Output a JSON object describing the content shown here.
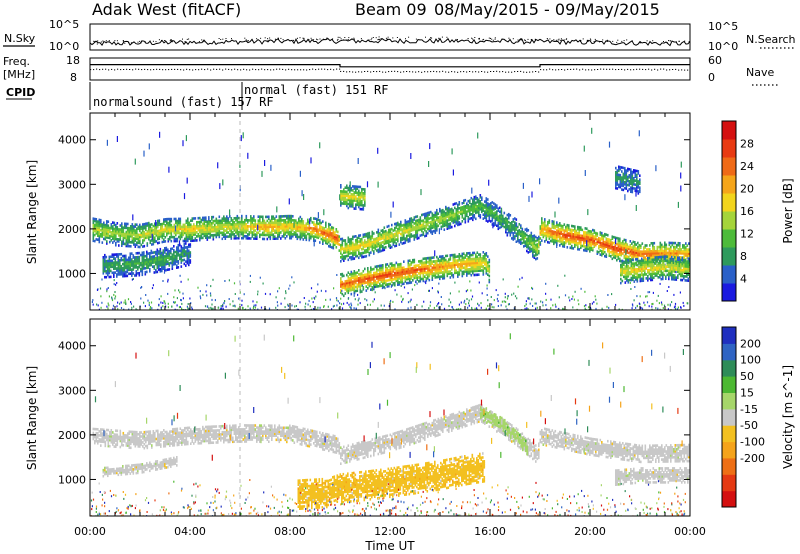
{
  "header": {
    "station": "Adak West (fitACF)",
    "beam": "Beam 09",
    "date_range": "08/May/2015 - 09/May/2015"
  },
  "panels": {
    "nsky_label": "N.Sky",
    "nsky_ticks": [
      "10^5",
      "10^0"
    ],
    "nsearch_label": "N.Search",
    "nsearch_ticks": [
      "10^5",
      "10^0"
    ],
    "freq_label": "Freq.",
    "freq_unit": "[MHz]",
    "freq_ticks": [
      "18",
      "8"
    ],
    "nave_label": "Nave",
    "nave_ticks": [
      "60",
      "0"
    ],
    "cpid_label": "CPID",
    "cpid_segments": [
      {
        "label": "normalsound (fast) 157 RF",
        "start": 0,
        "end": 6
      },
      {
        "label": "normal (fast) 151 RF",
        "start": 6,
        "end": 24
      }
    ],
    "freq_segments": [
      {
        "start": 0,
        "end": 10,
        "level": 0.3
      },
      {
        "start": 10,
        "end": 18,
        "level": 0.4
      },
      {
        "start": 18,
        "end": 24,
        "level": 0.3
      }
    ]
  },
  "chart_data": [
    {
      "type": "heatmap",
      "title": "Power",
      "xlabel": "",
      "ylabel": "Slant Range [km]",
      "x_range": [
        0,
        24
      ],
      "ylim": [
        180,
        4600
      ],
      "y_ticks": [
        "1000",
        "2000",
        "3000",
        "4000"
      ],
      "y_tick_values": [
        1000,
        2000,
        3000,
        4000
      ],
      "colorbar": {
        "label": "Power [dB]",
        "ticks": [
          "4",
          "8",
          "12",
          "16",
          "20",
          "24",
          "28"
        ],
        "colors": [
          "#1a1ae0",
          "#2a60c8",
          "#2e9a5c",
          "#4dbb3a",
          "#a5d43a",
          "#f2d41c",
          "#f5a51a",
          "#ef6a17",
          "#e83a12",
          "#d41010"
        ]
      },
      "bands": [
        {
          "name": "main_echo",
          "points": [
            [
              0.1,
              2000
            ],
            [
              1,
              1900
            ],
            [
              2,
              1860
            ],
            [
              3,
              1990
            ],
            [
              4,
              2000
            ],
            [
              5,
              2040
            ],
            [
              6,
              2060
            ],
            [
              7,
              2040
            ],
            [
              8,
              2060
            ],
            [
              9,
              2000
            ],
            [
              9.9,
              1790
            ],
            [
              10,
              1540
            ],
            [
              11,
              1650
            ],
            [
              12,
              1850
            ],
            [
              13,
              2040
            ],
            [
              14,
              2220
            ],
            [
              15,
              2420
            ],
            [
              15.6,
              2530
            ],
            [
              16,
              2390
            ],
            [
              17,
              1990
            ],
            [
              17.9,
              1540
            ],
            [
              18,
              2010
            ],
            [
              19,
              1860
            ],
            [
              20,
              1760
            ],
            [
              21,
              1570
            ],
            [
              22,
              1440
            ],
            [
              23,
              1460
            ],
            [
              24,
              1440
            ]
          ],
          "intensity": [
            0.5,
            0.45,
            0.5,
            0.55,
            0.6,
            0.5,
            0.55,
            0.7,
            0.6,
            0.75,
            0.9,
            0.55,
            0.6,
            0.55,
            0.5,
            0.45,
            0.4,
            0.35,
            0.3,
            0.3,
            0.5,
            0.7,
            0.9,
            0.85,
            0.9,
            0.8,
            0.75,
            0.7
          ]
        },
        {
          "name": "lower_echo",
          "points": [
            [
              10,
              750
            ],
            [
              11,
              880
            ],
            [
              12,
              990
            ],
            [
              13,
              1080
            ],
            [
              14,
              1150
            ],
            [
              15,
              1220
            ],
            [
              15.8,
              1250
            ],
            [
              16,
              1000
            ]
          ],
          "intensity": [
            0.8,
            0.85,
            0.9,
            0.85,
            0.75,
            0.7,
            0.6,
            0.5
          ]
        },
        {
          "name": "early_weak",
          "points": [
            [
              0.5,
              1180
            ],
            [
              2,
              1230
            ],
            [
              3,
              1340
            ],
            [
              4,
              1470
            ]
          ],
          "intensity": [
            0.25,
            0.3,
            0.3,
            0.2
          ]
        },
        {
          "name": "upper_patch",
          "points": [
            [
              10,
              2750
            ],
            [
              11,
              2700
            ]
          ],
          "intensity": [
            0.55,
            0.5
          ]
        },
        {
          "name": "late_high",
          "points": [
            [
              21,
              3180
            ],
            [
              22,
              3050
            ]
          ],
          "intensity": [
            0.25,
            0.2
          ]
        },
        {
          "name": "late_low",
          "points": [
            [
              21.2,
              1050
            ],
            [
              22,
              1100
            ],
            [
              23,
              1150
            ],
            [
              24,
              1100
            ]
          ],
          "intensity": [
            0.55,
            0.6,
            0.55,
            0.5
          ]
        }
      ]
    },
    {
      "type": "heatmap",
      "title": "Velocity",
      "xlabel": "Time UT",
      "ylabel": "Slant Range [km]",
      "x_range": [
        0,
        24
      ],
      "x_ticks": [
        "00:00",
        "04:00",
        "08:00",
        "12:00",
        "16:00",
        "20:00",
        "00:00"
      ],
      "x_tick_values": [
        0,
        4,
        8,
        12,
        16,
        20,
        24
      ],
      "ylim": [
        180,
        4600
      ],
      "y_ticks": [
        "1000",
        "2000",
        "3000",
        "4000"
      ],
      "y_tick_values": [
        1000,
        2000,
        3000,
        4000
      ],
      "colorbar": {
        "label": "Velocity [m s^-1]",
        "ticks": [
          "200",
          "100",
          "50",
          "15",
          "-15",
          "-50",
          "-100",
          "-200"
        ],
        "colors": [
          "#1f2fbf",
          "#2f64c3",
          "#2e8c58",
          "#4cb832",
          "#a6d66a",
          "#c8c8c8",
          "#f3c020",
          "#f5a31a",
          "#ee6f15",
          "#e53912",
          "#d41010"
        ]
      },
      "bands": [
        {
          "name": "gray_echo",
          "points": [
            [
              0.1,
              1980
            ],
            [
              2,
              1900
            ],
            [
              4,
              2010
            ],
            [
              6,
              2060
            ],
            [
              8,
              2050
            ],
            [
              9.9,
              1800
            ],
            [
              10,
              1560
            ],
            [
              12,
              1850
            ],
            [
              14,
              2220
            ],
            [
              15.6,
              2520
            ],
            [
              17,
              2000
            ],
            [
              17.9,
              1560
            ],
            [
              18,
              2000
            ],
            [
              20,
              1760
            ],
            [
              22,
              1600
            ],
            [
              24,
              1620
            ]
          ],
          "vel": "-15",
          "thick": 200
        },
        {
          "name": "green_echo",
          "points": [
            [
              15.6,
              2500
            ],
            [
              16.5,
              2250
            ],
            [
              17.5,
              1700
            ]
          ],
          "vel": "15",
          "thick": 150
        },
        {
          "name": "orange_echo",
          "points": [
            [
              8.3,
              680
            ],
            [
              9.5,
              720
            ],
            [
              10,
              820
            ],
            [
              11,
              880
            ],
            [
              12,
              950
            ],
            [
              13,
              1030
            ],
            [
              14,
              1120
            ],
            [
              15,
              1230
            ],
            [
              15.8,
              1300
            ]
          ],
          "vel": "-50",
          "thick": 330
        },
        {
          "name": "early_gray",
          "points": [
            [
              0.5,
              1180
            ],
            [
              2,
              1260
            ],
            [
              3.5,
              1430
            ]
          ],
          "vel": "-15",
          "thick": 100
        },
        {
          "name": "late_gray_low",
          "points": [
            [
              21,
              1050
            ],
            [
              22,
              1100
            ],
            [
              24,
              1100
            ]
          ],
          "vel": "-15",
          "thick": 160
        }
      ]
    }
  ]
}
